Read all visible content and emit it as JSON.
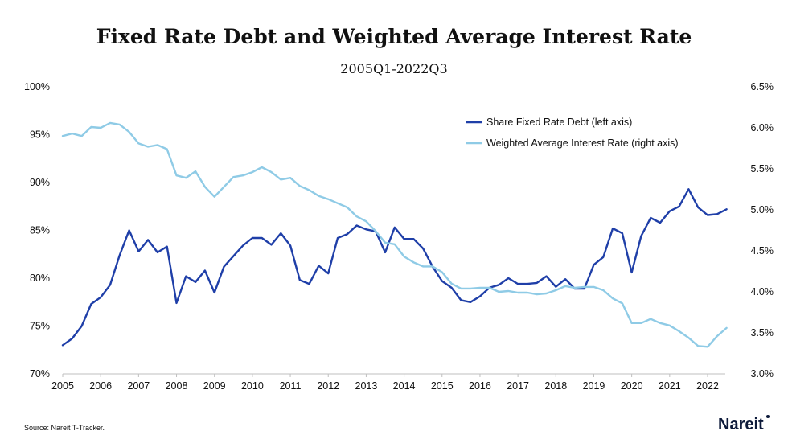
{
  "chart_data": {
    "type": "line",
    "title": "Fixed Rate Debt and Weighted Average Interest Rate",
    "subtitle": "2005Q1-2022Q3",
    "x_ticks": [
      "2005",
      "2006",
      "2007",
      "2008",
      "2009",
      "2010",
      "2011",
      "2012",
      "2013",
      "2014",
      "2015",
      "2016",
      "2017",
      "2018",
      "2019",
      "2020",
      "2021",
      "2022"
    ],
    "x_start": "2005Q1",
    "y_left": {
      "ticks": [
        "70%",
        "75%",
        "80%",
        "85%",
        "90%",
        "95%",
        "100%"
      ],
      "min": 70,
      "max": 100
    },
    "y_right": {
      "ticks": [
        "3.0%",
        "3.5%",
        "4.0%",
        "4.5%",
        "5.0%",
        "5.5%",
        "6.0%",
        "6.5%"
      ],
      "min": 3.0,
      "max": 6.5
    },
    "legend_position": "top-right",
    "grid": false,
    "series": [
      {
        "name": "Share Fixed Rate Debt (left axis)",
        "axis": "left",
        "color": "#1f3fa8",
        "values": [
          73.0,
          73.7,
          75.0,
          77.3,
          78.0,
          79.3,
          82.4,
          85.0,
          82.8,
          84.0,
          82.7,
          83.3,
          77.4,
          80.2,
          79.6,
          80.8,
          78.5,
          81.2,
          82.3,
          83.4,
          84.2,
          84.2,
          83.5,
          84.7,
          83.4,
          79.8,
          79.4,
          81.3,
          80.5,
          84.2,
          84.6,
          85.5,
          85.1,
          84.9,
          82.7,
          85.3,
          84.1,
          84.1,
          83.1,
          81.2,
          79.7,
          79.0,
          77.7,
          77.5,
          78.1,
          79.0,
          79.3,
          80.0,
          79.4,
          79.4,
          79.5,
          80.2,
          79.1,
          79.9,
          78.9,
          78.9,
          81.4,
          82.2,
          85.2,
          84.7,
          80.6,
          84.4,
          86.3,
          85.8,
          87.0,
          87.5,
          89.3,
          87.4,
          86.6,
          86.7,
          87.2
        ]
      },
      {
        "name": "Weighted Average Interest Rate (right axis)",
        "axis": "right",
        "color": "#8fcbe6",
        "values": [
          5.9,
          5.93,
          5.9,
          6.01,
          6.0,
          6.06,
          6.04,
          5.95,
          5.81,
          5.77,
          5.79,
          5.74,
          5.42,
          5.39,
          5.47,
          5.28,
          5.16,
          5.28,
          5.4,
          5.42,
          5.46,
          5.52,
          5.46,
          5.37,
          5.39,
          5.29,
          5.24,
          5.17,
          5.13,
          5.08,
          5.03,
          4.92,
          4.86,
          4.74,
          4.6,
          4.58,
          4.43,
          4.36,
          4.31,
          4.31,
          4.24,
          4.1,
          4.04,
          4.04,
          4.05,
          4.05,
          4.0,
          4.01,
          3.99,
          3.99,
          3.97,
          3.98,
          4.02,
          4.07,
          4.05,
          4.06,
          4.06,
          4.02,
          3.92,
          3.86,
          3.62,
          3.62,
          3.67,
          3.62,
          3.59,
          3.52,
          3.44,
          3.34,
          3.33,
          3.46,
          3.56
        ]
      }
    ]
  },
  "footer": {
    "source": "Source: Nareit T-Tracker.",
    "logo": "Nareit"
  }
}
